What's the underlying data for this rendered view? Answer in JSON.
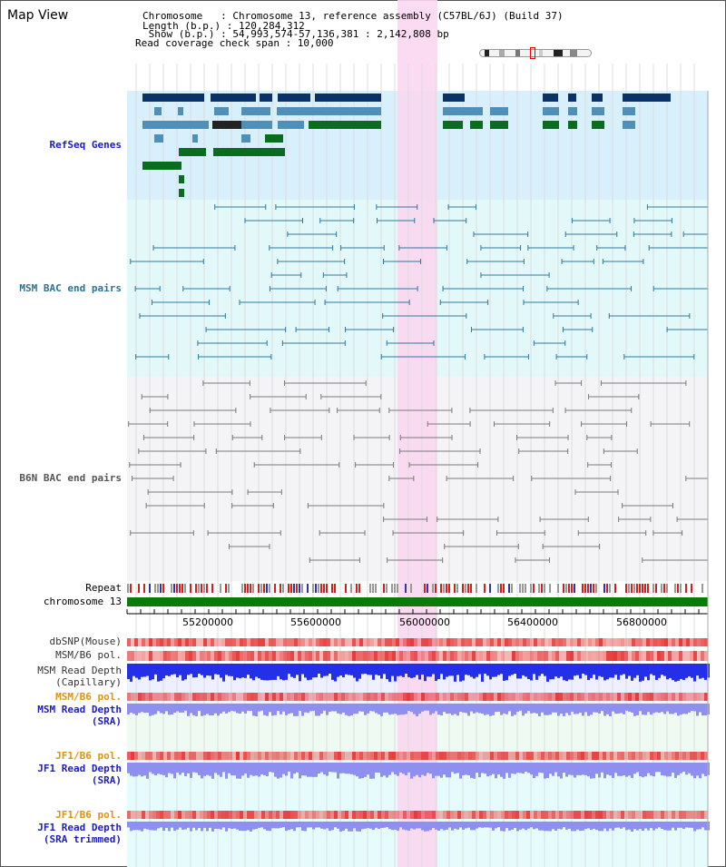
{
  "header": {
    "title": "Map View",
    "info_lines": [
      "Chromosome   : Chromosome 13, reference assembly (C57BL/6J) (Build 37)",
      "Length (b.p.) : 120,284,312",
      " Show (b.p.) : 54,993,574-57,136,381 : 2,142,808 bp",
      "Read coverage check span : 10,000"
    ]
  },
  "tracks": {
    "refseq_genes": "RefSeq Genes",
    "msm_bac": "MSM BAC end pairs",
    "b6n_bac": "B6N BAC end pairs",
    "repeat": "Repeat",
    "chromosome": "chromosome 13",
    "dbsnp": "dbSNP(Mouse)",
    "msm_b6_pol": "MSM/B6 pol.",
    "msm_depth_cap_1": "MSM Read Depth",
    "msm_depth_cap_2": "(Capillary)",
    "msm_b6_pol_2": "MSM/B6 pol.",
    "msm_depth_sra_1": "MSM Read Depth",
    "msm_depth_sra_2": "(SRA)",
    "jf1_b6_pol": "JF1/B6 pol.",
    "jf1_depth_sra_1": "JF1 Read Depth",
    "jf1_depth_sra_2": "(SRA)",
    "jf1_b6_pol_2": "JF1/B6 pol.",
    "jf1_depth_trim_1": "JF1 Read Depth",
    "jf1_depth_trim_2": "(SRA trimmed)"
  },
  "axis": {
    "ticks": [
      "55200000",
      "55600000",
      "56000000",
      "56400000",
      "56800000"
    ]
  },
  "colors": {
    "refseq_dark": "#0b3268",
    "refseq_mid": "#4f8fb8",
    "refseq_green": "#0b6b1e",
    "refseq_bg": "#d8f0fb",
    "msm_line": "#2c79a0",
    "msm_bg": "#e3f9f9",
    "b6n_line": "#7a7a7a",
    "b6n_bg": "#f4f4f6",
    "highlight": "#f9d7ef",
    "chrom_bar": "#0a7a0a",
    "depth_blue": "#2330e8",
    "depth_light": "#8f8ff0",
    "pol_red": "#e83a3a",
    "label_blue": "#1d1dbf",
    "label_orange": "#e0920a",
    "label_teal": "#2d7290"
  }
}
